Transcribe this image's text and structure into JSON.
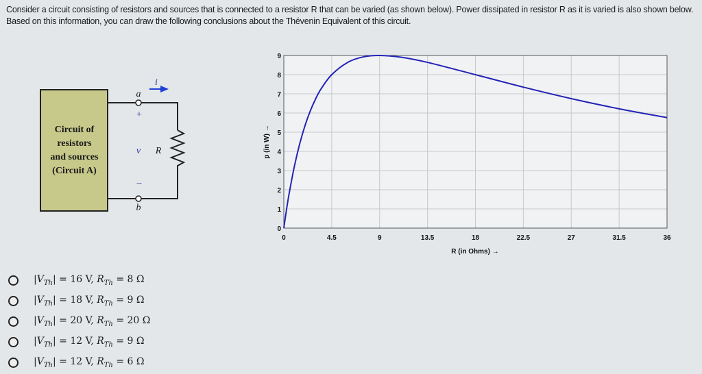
{
  "question": "Consider a circuit consisting of resistors and sources that is connected to a resistor R that can be varied (as shown below). Power dissipated in resistor R as it is varied is also shown below. Based on this information, you can draw the following conclusions about the Thévenin Equivalent of this circuit.",
  "circuit": {
    "box_lines": [
      "Circuit of",
      "resistors",
      "and sources",
      "(Circuit A)"
    ],
    "box_color": "#c7c98a",
    "terminal_a": "a",
    "terminal_b": "b",
    "plus": "+",
    "minus": "–",
    "voltage": "v",
    "resistor": "R",
    "current": "i",
    "arrow_color": "#1f3fd6"
  },
  "chart_data": {
    "type": "line",
    "xlabel": "R (in Ohms) →",
    "ylabel": "p (in W) →",
    "xlim": [
      0,
      36
    ],
    "ylim": [
      0,
      9
    ],
    "xticks": [
      "0",
      "4.5",
      "9",
      "13.5",
      "18",
      "22.5",
      "27",
      "31.5",
      "36"
    ],
    "yticks": [
      "0",
      "1",
      "2",
      "3",
      "4",
      "5",
      "6",
      "7",
      "8",
      "9"
    ],
    "grid": true,
    "line_color": "#2323b8",
    "series": [
      {
        "x": [
          0,
          0.25,
          0.5,
          1,
          1.5,
          2,
          2.5,
          3,
          3.5,
          4.5,
          6,
          7.5,
          9,
          11,
          13.5,
          18,
          22.5,
          27,
          31.5,
          36
        ],
        "y": [
          0,
          0.95,
          1.8,
          3.24,
          4.41,
          5.36,
          6.13,
          6.75,
          7.26,
          8.0,
          8.64,
          8.93,
          9.0,
          8.91,
          8.64,
          8.0,
          7.35,
          6.75,
          6.22,
          5.76
        ]
      }
    ]
  },
  "options": [
    {
      "vth": "16",
      "rth": "8"
    },
    {
      "vth": "18",
      "rth": "9"
    },
    {
      "vth": "20",
      "rth": "20"
    },
    {
      "vth": "12",
      "rth": "9"
    },
    {
      "vth": "12",
      "rth": "6"
    }
  ],
  "option_symbols": {
    "v": "V",
    "r": "R",
    "sub": "Th",
    "eq": "=",
    "volt": "V,",
    "ohm": "Ω"
  }
}
